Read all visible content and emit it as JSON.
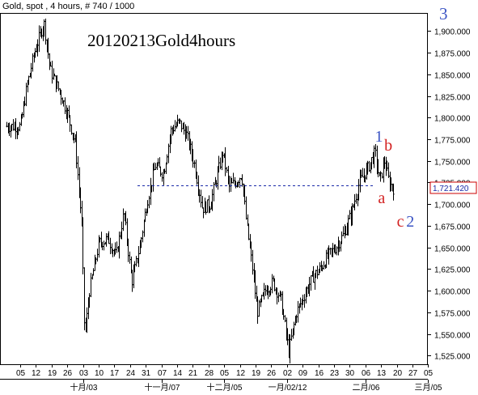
{
  "header": {
    "info": "Gold, spot , 4 hours, # 740 / 1000",
    "corner_wave": "3",
    "annotation_title": "20120213Gold4hours"
  },
  "price_box": {
    "label": "1,721.420",
    "value": 1721.42,
    "color": "#cc0000"
  },
  "chart_data": {
    "type": "ohlc",
    "title": "20120213Gold4hours",
    "instrument": "Gold, spot",
    "timeframe": "4 hours",
    "ylim": [
      1515,
      1920
    ],
    "y_ticks": [
      1525,
      1550,
      1575,
      1600,
      1625,
      1650,
      1675,
      1700,
      1725,
      1750,
      1775,
      1800,
      1825,
      1850,
      1875,
      1900
    ],
    "y_tick_labels": [
      "1,525.000",
      "1,550.000",
      "1,575.000",
      "1,600.000",
      "1,625.000",
      "1,650.000",
      "1,675.000",
      "1,700.000",
      "1,725.000",
      "1,750.000",
      "1,775.000",
      "1,800.000",
      "1,825.000",
      "1,850.000",
      "1,875.000",
      "1,900.000"
    ],
    "x_day_labels": [
      "05",
      "12",
      "19",
      "26",
      "03",
      "10",
      "17",
      "24",
      "31",
      "07",
      "14",
      "21",
      "28",
      "05",
      "12",
      "19",
      "26",
      "02",
      "09",
      "16",
      "23",
      "30",
      "06",
      "13",
      "20",
      "27",
      "05"
    ],
    "x_month_labels": [
      "十月/03",
      "十一月/07",
      "十二月/05",
      "一月/02/12",
      "二月/06",
      "三月/05"
    ],
    "x_month_label_index": [
      4,
      9,
      13,
      17,
      22,
      26
    ],
    "path_points": [
      [
        0,
        1790
      ],
      [
        0.4,
        1835
      ],
      [
        0.9,
        1875
      ],
      [
        1.5,
        1910
      ],
      [
        1.9,
        1855
      ],
      [
        2.5,
        1830
      ],
      [
        3,
        1805
      ],
      [
        3.5,
        1770
      ],
      [
        3.9,
        1680
      ],
      [
        4.1,
        1545
      ],
      [
        4.4,
        1600
      ],
      [
        5,
        1655
      ],
      [
        5.6,
        1660
      ],
      [
        6.1,
        1640
      ],
      [
        6.6,
        1690
      ],
      [
        7.1,
        1610
      ],
      [
        7.6,
        1650
      ],
      [
        8.1,
        1705
      ],
      [
        8.6,
        1745
      ],
      [
        9.1,
        1735
      ],
      [
        9.6,
        1785
      ],
      [
        10.1,
        1795
      ],
      [
        10.6,
        1780
      ],
      [
        11.1,
        1745
      ],
      [
        11.6,
        1695
      ],
      [
        12.1,
        1700
      ],
      [
        12.5,
        1730
      ],
      [
        12.9,
        1760
      ],
      [
        13.3,
        1720
      ],
      [
        13.7,
        1725
      ],
      [
        14.1,
        1735
      ],
      [
        14.4,
        1680
      ],
      [
        14.8,
        1625
      ],
      [
        15.1,
        1575
      ],
      [
        15.6,
        1600
      ],
      [
        16.1,
        1610
      ],
      [
        16.6,
        1590
      ],
      [
        17.1,
        1530
      ],
      [
        17.6,
        1575
      ],
      [
        18.1,
        1595
      ],
      [
        18.6,
        1615
      ],
      [
        19.1,
        1625
      ],
      [
        19.6,
        1640
      ],
      [
        20.1,
        1650
      ],
      [
        20.6,
        1665
      ],
      [
        21.1,
        1690
      ],
      [
        21.6,
        1725
      ],
      [
        22.1,
        1740
      ],
      [
        22.6,
        1760
      ],
      [
        22.9,
        1725
      ],
      [
        23.2,
        1750
      ],
      [
        23.5,
        1725
      ],
      [
        23.8,
        1718
      ]
    ],
    "horizontal_line": {
      "value": 1721.42,
      "style": "dashed",
      "color": "#1a2aa8"
    },
    "annotations": [
      {
        "text": "1",
        "x": 22.6,
        "y": 1772,
        "color": "#3b54c4"
      },
      {
        "text": "b",
        "x": 23.2,
        "y": 1762,
        "color": "#d21f1f"
      },
      {
        "text": "a",
        "x": 22.8,
        "y": 1701,
        "color": "#d21f1f"
      },
      {
        "text": "c",
        "x": 24.0,
        "y": 1674,
        "color": "#d21f1f"
      },
      {
        "text": "2",
        "x": 24.6,
        "y": 1674,
        "color": "#3b54c4"
      }
    ],
    "grid": false,
    "colors": {
      "bars": "#000000",
      "axis": "#000000",
      "wave_blue": "#3b54c4",
      "wave_red": "#d21f1f"
    }
  }
}
